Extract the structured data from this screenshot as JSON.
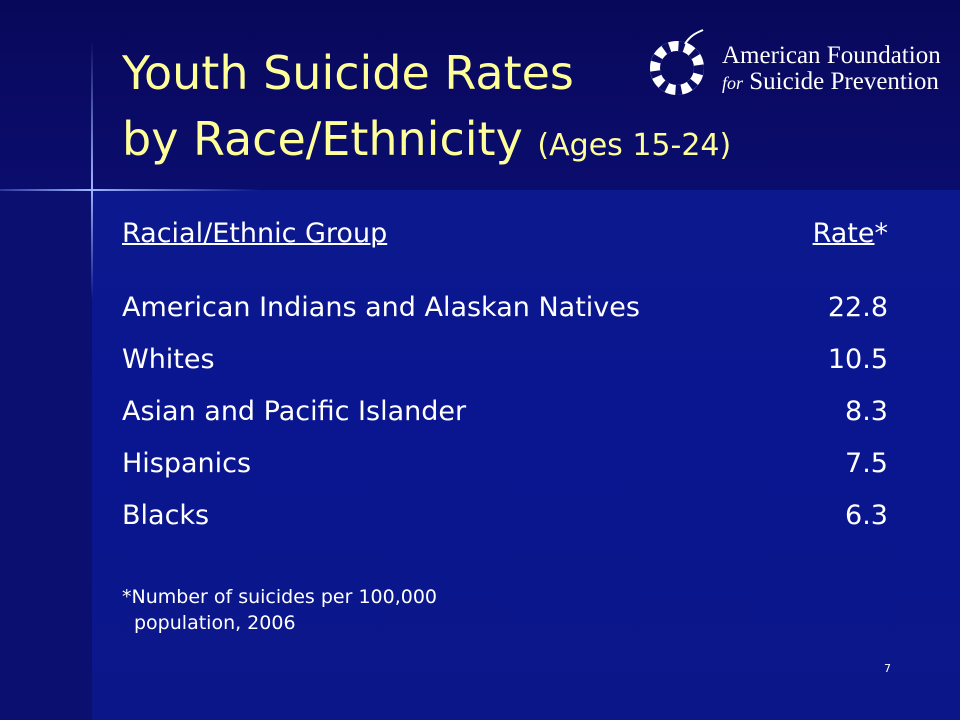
{
  "title": {
    "line1": "Youth Suicide Rates",
    "line2": "by Race/Ethnicity",
    "ages": "(Ages 15-24)"
  },
  "logo": {
    "line1": "American Foundation",
    "for": "for",
    "line2": "Suicide Prevention"
  },
  "table": {
    "header": {
      "group": "Racial/Ethnic Group",
      "rate": "Rate",
      "mark": "*"
    },
    "rows": [
      [
        "American Indians and Alaskan Natives",
        22.8
      ],
      [
        "Whites",
        10.5
      ],
      [
        "Asian and Pacific Islander",
        8.3
      ],
      [
        "Hispanics",
        7.5
      ],
      [
        "Blacks",
        6.3
      ]
    ]
  },
  "footnote": {
    "line1": "*Number of suicides per 100,000",
    "line2": "population, 2006"
  },
  "page_number": "7"
}
